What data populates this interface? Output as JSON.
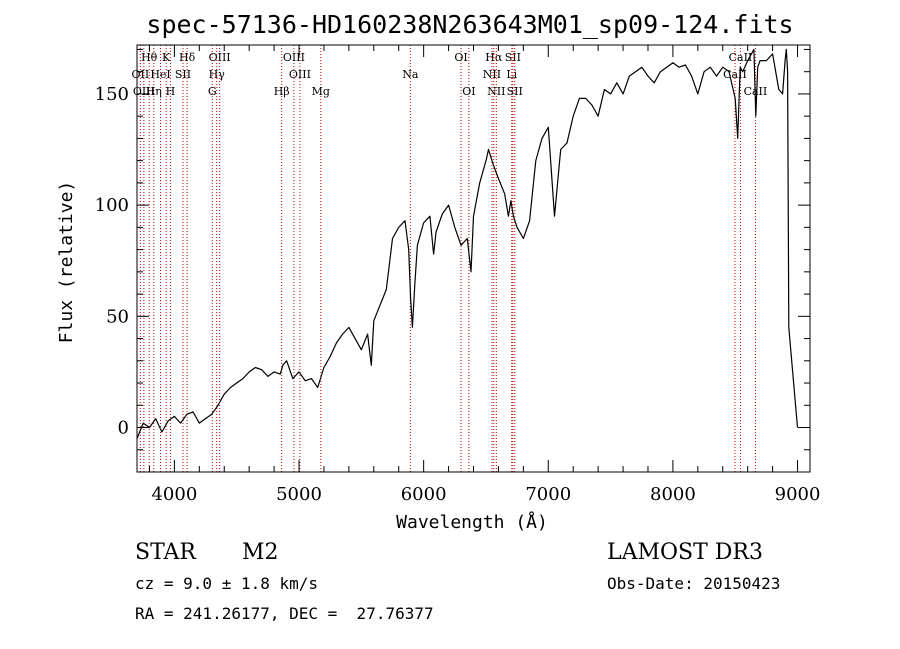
{
  "chart_data": {
    "type": "line",
    "title": "spec-57136-HD160238N263643M01_sp09-124.fits",
    "xlabel": "Wavelength (Å)",
    "ylabel": "Flux (relative)",
    "xlim": [
      3700,
      9100
    ],
    "ylim": [
      -20,
      172
    ],
    "x_ticks": [
      4000,
      5000,
      6000,
      7000,
      8000,
      9000
    ],
    "y_ticks": [
      0,
      50,
      100,
      150
    ],
    "grid": false,
    "series": [
      {
        "name": "spectrum",
        "x": [
          3700,
          3750,
          3800,
          3850,
          3900,
          3950,
          4000,
          4050,
          4100,
          4150,
          4200,
          4250,
          4300,
          4350,
          4400,
          4450,
          4500,
          4550,
          4600,
          4650,
          4700,
          4750,
          4800,
          4850,
          4870,
          4900,
          4950,
          5000,
          5050,
          5100,
          5150,
          5200,
          5250,
          5300,
          5350,
          5400,
          5450,
          5500,
          5550,
          5580,
          5600,
          5650,
          5700,
          5750,
          5800,
          5850,
          5880,
          5895,
          5910,
          5930,
          5950,
          6000,
          6050,
          6080,
          6100,
          6150,
          6200,
          6250,
          6300,
          6350,
          6380,
          6400,
          6450,
          6500,
          6520,
          6560,
          6580,
          6600,
          6650,
          6680,
          6700,
          6720,
          6750,
          6800,
          6850,
          6900,
          6950,
          7000,
          7050,
          7100,
          7150,
          7200,
          7250,
          7300,
          7350,
          7400,
          7450,
          7500,
          7550,
          7600,
          7650,
          7700,
          7750,
          7800,
          7850,
          7900,
          7950,
          8000,
          8050,
          8100,
          8150,
          8200,
          8250,
          8300,
          8350,
          8400,
          8450,
          8500,
          8520,
          8540,
          8560,
          8600,
          8650,
          8665,
          8680,
          8700,
          8750,
          8800,
          8850,
          8880,
          8900,
          8910,
          8920,
          8930,
          9000
        ],
        "y": [
          -5,
          2,
          0,
          4,
          -2,
          3,
          5,
          2,
          6,
          7,
          2,
          4,
          6,
          10,
          15,
          18,
          20,
          22,
          25,
          27,
          26,
          23,
          25,
          24,
          28,
          30,
          22,
          25,
          21,
          22,
          18,
          27,
          32,
          38,
          42,
          45,
          40,
          35,
          42,
          28,
          48,
          55,
          62,
          85,
          90,
          93,
          80,
          58,
          45,
          65,
          82,
          92,
          95,
          78,
          88,
          96,
          100,
          90,
          82,
          85,
          70,
          95,
          110,
          120,
          125,
          118,
          115,
          112,
          105,
          95,
          102,
          95,
          90,
          85,
          93,
          120,
          130,
          135,
          95,
          125,
          128,
          140,
          148,
          148,
          145,
          140,
          152,
          150,
          155,
          150,
          158,
          160,
          162,
          158,
          155,
          160,
          162,
          164,
          162,
          163,
          158,
          150,
          160,
          162,
          158,
          162,
          160,
          148,
          130,
          162,
          160,
          165,
          170,
          140,
          162,
          165,
          165,
          168,
          152,
          150,
          165,
          170,
          160,
          45,
          0
        ]
      }
    ],
    "lines": [
      {
        "name": "Hθ",
        "x": 3798,
        "row": 0
      },
      {
        "name": "OII",
        "x": 3727,
        "row": 1
      },
      {
        "name": "OIII",
        "x": 3755,
        "row": 2
      },
      {
        "name": "K",
        "x": 3934,
        "row": 0
      },
      {
        "name": "HeI",
        "x": 3889,
        "row": 1
      },
      {
        "name": "Hη",
        "x": 3835,
        "row": 2
      },
      {
        "name": "Hδ",
        "x": 4102,
        "row": 0
      },
      {
        "name": "SII",
        "x": 4069,
        "row": 1
      },
      {
        "name": "H",
        "x": 3968,
        "row": 2
      },
      {
        "name": "OIII",
        "x": 4363,
        "row": 0
      },
      {
        "name": "Hγ",
        "x": 4340,
        "row": 1
      },
      {
        "name": "G",
        "x": 4304,
        "row": 2
      },
      {
        "name": "OIII",
        "x": 4959,
        "row": 0
      },
      {
        "name": "OIII",
        "x": 5007,
        "row": 1
      },
      {
        "name": "Hβ",
        "x": 4861,
        "row": 2
      },
      {
        "name": "Mg",
        "x": 5175,
        "row": 2
      },
      {
        "name": "Na",
        "x": 5893,
        "row": 1
      },
      {
        "name": "OI",
        "x": 6300,
        "row": 0
      },
      {
        "name": "OI",
        "x": 6363,
        "row": 2
      },
      {
        "name": "Hα",
        "x": 6563,
        "row": 0
      },
      {
        "name": "NII",
        "x": 6548,
        "row": 1
      },
      {
        "name": "NII",
        "x": 6583,
        "row": 2
      },
      {
        "name": "SII",
        "x": 6716,
        "row": 0
      },
      {
        "name": "Li",
        "x": 6707,
        "row": 1
      },
      {
        "name": "SII",
        "x": 6731,
        "row": 2
      },
      {
        "name": "CaII",
        "x": 8542,
        "row": 0
      },
      {
        "name": "CaII",
        "x": 8498,
        "row": 1
      },
      {
        "name": "CaII",
        "x": 8662,
        "row": 2
      }
    ]
  },
  "info": {
    "class_label": "STAR",
    "subclass": "M2",
    "survey": "LAMOST DR3",
    "cz": "cz = 9.0 ± 1.8 km/s",
    "obs_date": "Obs-Date: 20150423",
    "coords": "RA = 241.26177, DEC =  27.76377"
  },
  "colors": {
    "spectrum": "#000000",
    "marker_line": "#c00000",
    "axes": "#000000"
  }
}
